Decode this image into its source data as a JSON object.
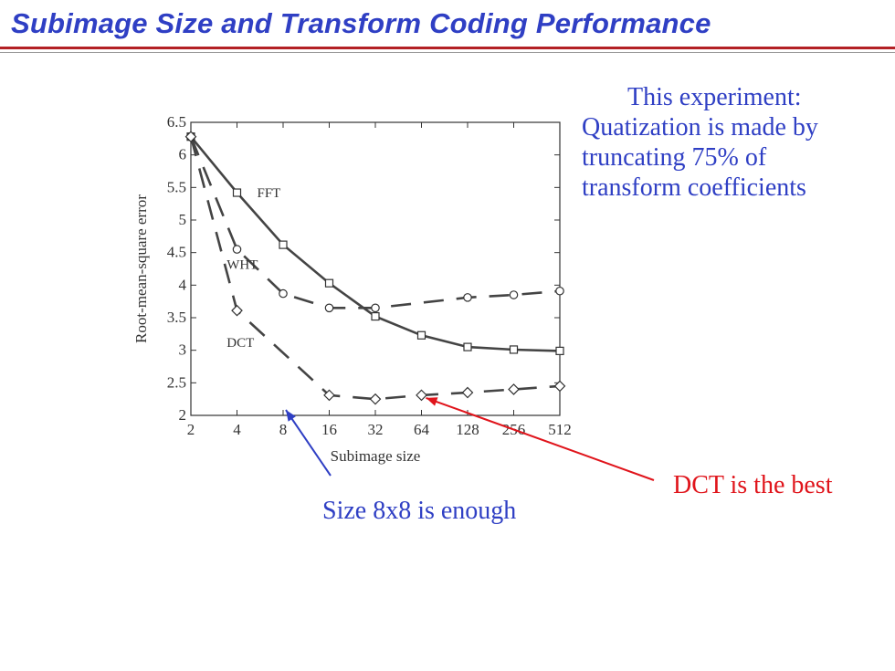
{
  "slide": {
    "title": "Subimage Size and Transform Coding Performance",
    "note_lines": [
      "This experiment:",
      "Quatization is made by",
      "truncating 75% of",
      "transform coefficients"
    ],
    "callout_dct": "DCT is the best",
    "callout_size": "Size 8x8 is enough",
    "colors": {
      "title": "#2f3fc4",
      "rule": "#b32025",
      "callout_red": "#e0141b",
      "callout_blue": "#2f3fc4",
      "ink": "#333333"
    }
  },
  "chart_data": {
    "type": "line",
    "title": "",
    "xlabel": "Subimage size",
    "ylabel": "Root-mean-square error",
    "x_scale": "log2",
    "categories": [
      "2",
      "4",
      "8",
      "16",
      "32",
      "64",
      "128",
      "256",
      "512"
    ],
    "ylim": [
      2,
      6.5
    ],
    "yticks": [
      "2",
      "2.5",
      "3",
      "3.5",
      "4",
      "4.5",
      "5",
      "5.5",
      "6",
      "6.5"
    ],
    "grid": false,
    "series": [
      {
        "name": "FFT",
        "marker": "square",
        "line": "solid",
        "values": [
          6.28,
          5.42,
          4.62,
          4.03,
          3.52,
          3.23,
          3.05,
          3.01,
          2.99
        ]
      },
      {
        "name": "WHT",
        "marker": "circle",
        "line": "dashed",
        "values": [
          6.28,
          4.55,
          3.87,
          3.65,
          3.65,
          null,
          3.81,
          3.85,
          3.91
        ]
      },
      {
        "name": "DCT",
        "marker": "diamond",
        "line": "dashed",
        "values": [
          6.28,
          3.61,
          null,
          2.31,
          2.25,
          2.31,
          2.35,
          2.4,
          2.45
        ]
      }
    ]
  }
}
